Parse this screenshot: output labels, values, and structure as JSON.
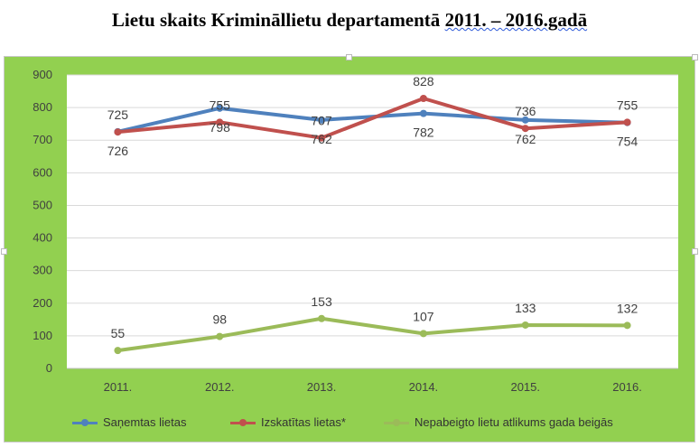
{
  "document": {
    "title_prefix": "Lietu skaits Krimināllietu departamentā ",
    "title_marked": "2011. – 2016.gadā"
  },
  "chart_data": {
    "type": "line",
    "categories": [
      "2011.",
      "2012.",
      "2013.",
      "2014.",
      "2015.",
      "2016."
    ],
    "ylim": [
      0,
      900
    ],
    "yticks": [
      0,
      100,
      200,
      300,
      400,
      500,
      600,
      700,
      800,
      900
    ],
    "grid": true,
    "legend_position": "bottom",
    "series": [
      {
        "name": "Saņemtas lietas",
        "color": "#4f81bd",
        "values": [
          726,
          798,
          762,
          782,
          762,
          754
        ],
        "labels": [
          "726",
          "798",
          "762",
          "782",
          "762",
          "754"
        ],
        "label_side": "below"
      },
      {
        "name": "Izskatītas lietas*",
        "color": "#c0504d",
        "values": [
          725,
          755,
          707,
          828,
          736,
          755
        ],
        "labels": [
          "725",
          "755",
          "707",
          "828",
          "736",
          "755"
        ],
        "label_side": "above"
      },
      {
        "name": "Nepabeigto lietu atlikums gada beigās",
        "color": "#9bbb59",
        "values": [
          55,
          98,
          153,
          107,
          133,
          132
        ],
        "labels": [
          "55",
          "98",
          "153",
          "107",
          "133",
          "132"
        ],
        "label_side": "above"
      }
    ]
  }
}
